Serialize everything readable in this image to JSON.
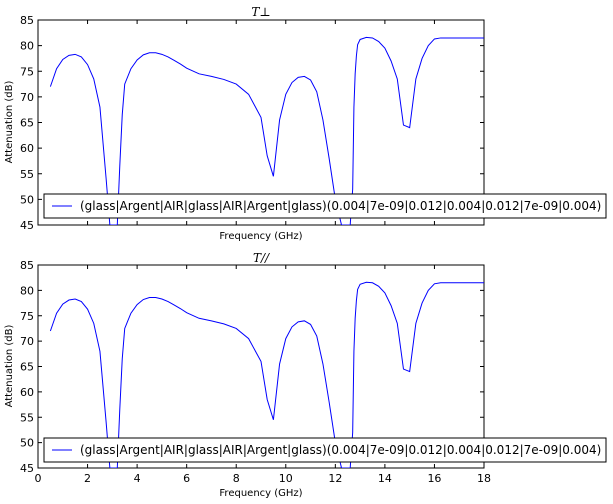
{
  "chart_data": [
    {
      "type": "line",
      "title": "T⊥",
      "xlabel": "Frequency (GHz)",
      "ylabel": "Attenuation (dB)",
      "xlim": [
        0,
        18
      ],
      "ylim": [
        45,
        85
      ],
      "xticks": [],
      "yticks": [
        45,
        50,
        55,
        60,
        65,
        70,
        75,
        80,
        85
      ],
      "grid": false,
      "legend_position": "lower right",
      "series": [
        {
          "name": "(glass|Argent|AIR|glass|AIR|Argent|glass)(0.004|7e-09|0.012|0.004|0.012|7e-09|0.004)",
          "color": "#0000ff",
          "x": [
            0.5,
            0.75,
            1.0,
            1.25,
            1.5,
            1.75,
            2.0,
            2.25,
            2.5,
            2.75,
            2.9,
            3.0,
            3.1,
            3.2,
            3.3,
            3.4,
            3.5,
            3.75,
            4.0,
            4.25,
            4.5,
            4.75,
            5.0,
            5.25,
            5.5,
            5.75,
            6.0,
            6.5,
            7.0,
            7.5,
            8.0,
            8.5,
            9.0,
            9.25,
            9.5,
            9.75,
            10.0,
            10.25,
            10.5,
            10.75,
            11.0,
            11.25,
            11.5,
            11.75,
            12.0,
            12.25,
            12.5,
            12.6,
            12.7,
            12.75,
            12.8,
            12.85,
            12.9,
            13.0,
            13.25,
            13.5,
            13.75,
            14.0,
            14.25,
            14.5,
            14.75,
            15.0,
            15.25,
            15.5,
            15.75,
            16.0,
            16.25,
            16.5,
            16.75,
            17.0,
            17.25,
            17.5,
            17.75,
            18.0
          ],
          "values": [
            72.0,
            75.5,
            77.3,
            78.1,
            78.3,
            77.8,
            76.3,
            73.5,
            68.0,
            54.0,
            45.0,
            45.0,
            45.0,
            45.0,
            56.5,
            66.5,
            72.5,
            75.5,
            77.2,
            78.2,
            78.6,
            78.6,
            78.3,
            77.8,
            77.1,
            76.4,
            75.6,
            74.5,
            74.0,
            73.4,
            72.5,
            70.5,
            66.0,
            58.5,
            54.5,
            65.5,
            70.5,
            72.8,
            73.8,
            74.0,
            73.3,
            71.0,
            65.5,
            58.0,
            50.0,
            45.0,
            45.0,
            45.0,
            52.0,
            68.0,
            74.5,
            78.0,
            80.2,
            81.2,
            81.6,
            81.5,
            80.8,
            79.5,
            77.0,
            73.5,
            64.5,
            64.0,
            73.5,
            77.5,
            80.0,
            81.3,
            81.5,
            81.5,
            81.5,
            81.5,
            81.5,
            81.5,
            81.5,
            81.5
          ]
        }
      ]
    },
    {
      "type": "line",
      "title": "T//",
      "xlabel": "Frequency (GHz)",
      "ylabel": "Attenuation (dB)",
      "xlim": [
        0,
        18
      ],
      "ylim": [
        45,
        85
      ],
      "xticks": [
        "0",
        "2",
        "4",
        "6",
        "8",
        "10",
        "12",
        "14",
        "16",
        "18"
      ],
      "yticks": [
        45,
        50,
        55,
        60,
        65,
        70,
        75,
        80,
        85
      ],
      "grid": false,
      "legend_position": "lower right",
      "series": [
        {
          "name": "(glass|Argent|AIR|glass|AIR|Argent|glass)(0.004|7e-09|0.012|0.004|0.012|7e-09|0.004)",
          "color": "#0000ff",
          "x": [
            0.5,
            0.75,
            1.0,
            1.25,
            1.5,
            1.75,
            2.0,
            2.25,
            2.5,
            2.75,
            2.9,
            3.0,
            3.1,
            3.2,
            3.3,
            3.4,
            3.5,
            3.75,
            4.0,
            4.25,
            4.5,
            4.75,
            5.0,
            5.25,
            5.5,
            5.75,
            6.0,
            6.5,
            7.0,
            7.5,
            8.0,
            8.5,
            9.0,
            9.25,
            9.5,
            9.75,
            10.0,
            10.25,
            10.5,
            10.75,
            11.0,
            11.25,
            11.5,
            11.75,
            12.0,
            12.25,
            12.5,
            12.6,
            12.7,
            12.75,
            12.8,
            12.85,
            12.9,
            13.0,
            13.25,
            13.5,
            13.75,
            14.0,
            14.25,
            14.5,
            14.75,
            15.0,
            15.25,
            15.5,
            15.75,
            16.0,
            16.25,
            16.5,
            16.75,
            17.0,
            17.25,
            17.5,
            17.75,
            18.0
          ],
          "values": [
            72.0,
            75.5,
            77.3,
            78.1,
            78.3,
            77.8,
            76.3,
            73.5,
            68.0,
            54.0,
            45.0,
            45.0,
            45.0,
            45.0,
            56.5,
            66.5,
            72.5,
            75.5,
            77.2,
            78.2,
            78.6,
            78.6,
            78.3,
            77.8,
            77.1,
            76.4,
            75.6,
            74.5,
            74.0,
            73.4,
            72.5,
            70.5,
            66.0,
            58.5,
            54.5,
            65.5,
            70.5,
            72.8,
            73.8,
            74.0,
            73.3,
            71.0,
            65.5,
            58.0,
            50.0,
            45.0,
            45.0,
            45.0,
            52.0,
            68.0,
            74.5,
            78.0,
            80.2,
            81.2,
            81.6,
            81.5,
            80.8,
            79.5,
            77.0,
            73.5,
            64.5,
            64.0,
            73.5,
            77.5,
            80.0,
            81.3,
            81.5,
            81.5,
            81.5,
            81.5,
            81.5,
            81.5,
            81.5,
            81.5
          ]
        }
      ]
    }
  ]
}
